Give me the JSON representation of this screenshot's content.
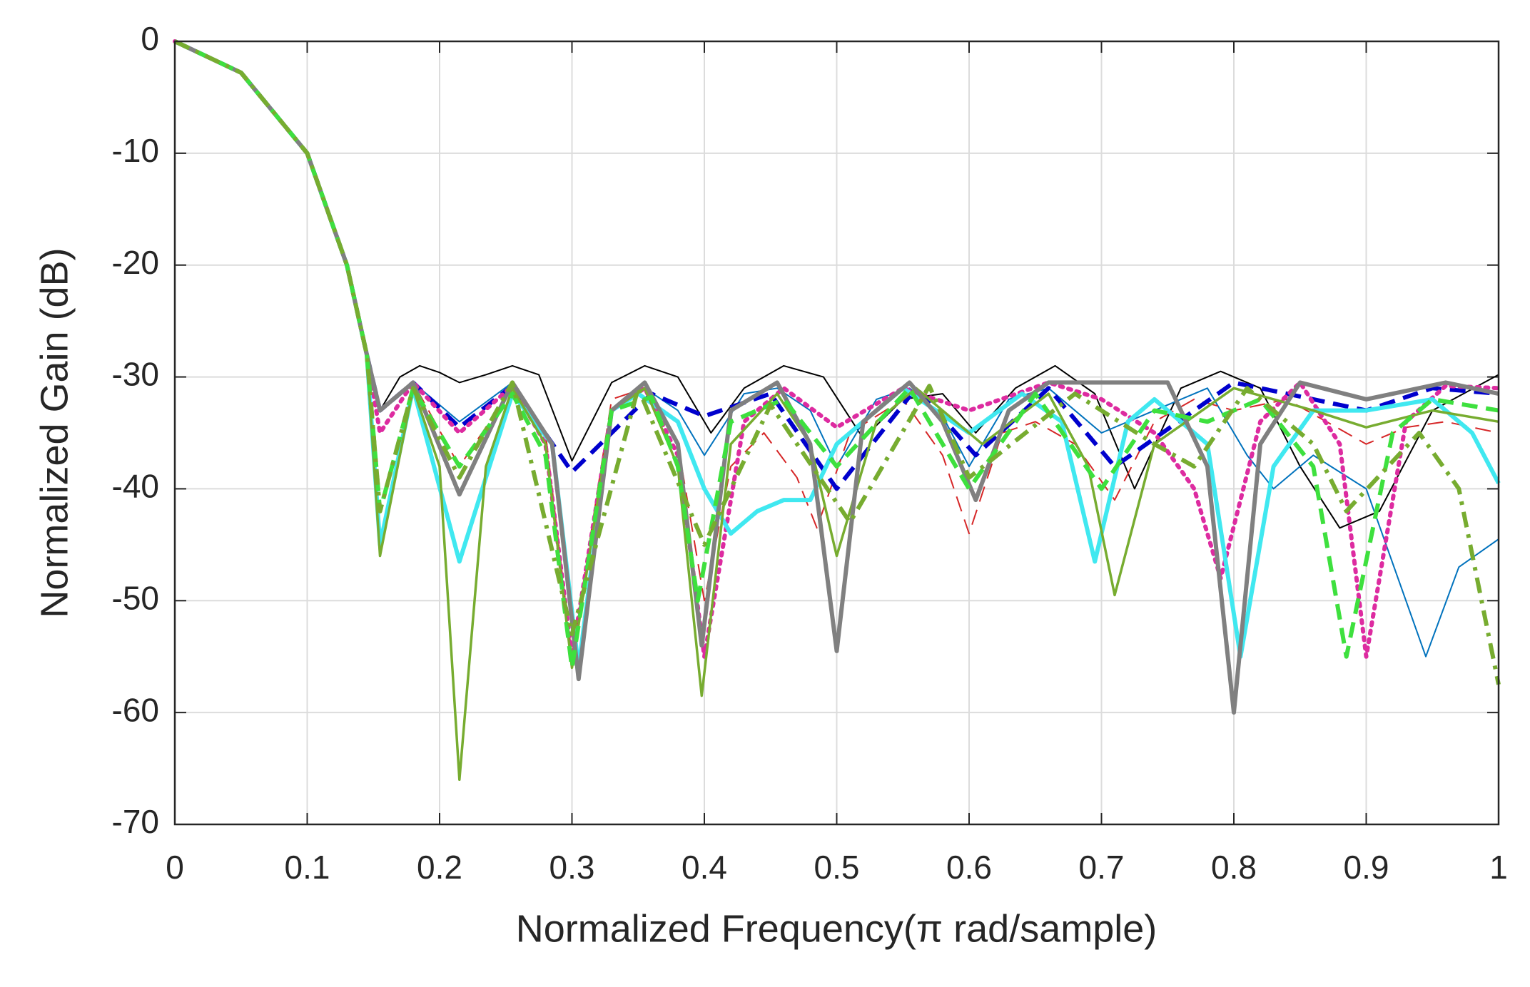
{
  "chart_data": {
    "type": "line",
    "xlabel": "Normalized Frequency(π rad/sample)",
    "ylabel": "Normalized Gain (dB)",
    "xlim": [
      0,
      1
    ],
    "xticks": [
      0,
      0.1,
      0.2,
      0.3,
      0.4,
      0.5,
      0.6,
      0.7,
      0.8,
      0.9,
      1
    ],
    "ylim": [
      -70,
      0
    ],
    "yticks": [
      0,
      -10,
      -20,
      -30,
      -40,
      -50,
      -60,
      -70
    ],
    "grid": true,
    "series": [
      {
        "color": "#000000",
        "style": "solid",
        "weight": "thin",
        "x": [
          0,
          0.05,
          0.1,
          0.13,
          0.145,
          0.155,
          0.17,
          0.185,
          0.2,
          0.215,
          0.235,
          0.255,
          0.275,
          0.3,
          0.33,
          0.355,
          0.38,
          0.405,
          0.43,
          0.46,
          0.49,
          0.52,
          0.55,
          0.58,
          0.605,
          0.635,
          0.665,
          0.695,
          0.725,
          0.76,
          0.79,
          0.82,
          0.85,
          0.88,
          0.91,
          0.95,
          1
        ],
        "values": [
          0,
          -2.8,
          -10,
          -20,
          -28,
          -33,
          -30,
          -29,
          -29.6,
          -30.5,
          -29.8,
          -29,
          -29.8,
          -37.5,
          -30.5,
          -29,
          -30,
          -35,
          -31,
          -29,
          -30,
          -35.5,
          -32,
          -31.5,
          -35,
          -31,
          -29,
          -31.5,
          -40,
          -31,
          -29.5,
          -31,
          -38,
          -43.5,
          -42,
          -33,
          -29.8
        ]
      },
      {
        "color": "#0072bd",
        "style": "solid",
        "weight": "thin",
        "x": [
          0,
          0.05,
          0.1,
          0.13,
          0.145,
          0.155,
          0.18,
          0.215,
          0.255,
          0.285,
          0.305,
          0.33,
          0.355,
          0.38,
          0.4,
          0.43,
          0.455,
          0.48,
          0.5,
          0.53,
          0.555,
          0.58,
          0.6,
          0.63,
          0.66,
          0.7,
          0.74,
          0.78,
          0.81,
          0.83,
          0.86,
          0.9,
          0.93,
          0.945,
          0.97,
          1
        ],
        "values": [
          0,
          -2.8,
          -10,
          -20,
          -28,
          -46,
          -30.5,
          -34,
          -30.5,
          -36,
          -57,
          -33,
          -31,
          -33,
          -37,
          -31.5,
          -31,
          -33,
          -38,
          -32,
          -31,
          -33.5,
          -38,
          -32,
          -31,
          -35,
          -33,
          -31,
          -37,
          -40,
          -37,
          -40,
          -50,
          -55,
          -47,
          -44.5
        ]
      },
      {
        "color": "#d62728",
        "style": "dashed",
        "weight": "thin",
        "x": [
          0,
          0.05,
          0.1,
          0.13,
          0.145,
          0.155,
          0.18,
          0.215,
          0.255,
          0.28,
          0.3,
          0.33,
          0.355,
          0.38,
          0.4,
          0.42,
          0.445,
          0.47,
          0.485,
          0.51,
          0.55,
          0.58,
          0.6,
          0.625,
          0.65,
          0.68,
          0.71,
          0.74,
          0.77,
          0.8,
          0.84,
          0.87,
          0.9,
          0.93,
          0.96,
          1
        ],
        "values": [
          0,
          -2.8,
          -10,
          -20,
          -28,
          -45,
          -30.5,
          -38,
          -31,
          -35,
          -55,
          -32,
          -31,
          -36,
          -50,
          -38,
          -35,
          -39,
          -43.5,
          -35,
          -32,
          -37,
          -44,
          -35,
          -34,
          -36,
          -41,
          -34,
          -32,
          -33,
          -32,
          -34,
          -36,
          -34.5,
          -34,
          -35
        ]
      },
      {
        "color": "#0000cd",
        "style": "dashed",
        "weight": "thick",
        "x": [
          0,
          0.05,
          0.1,
          0.13,
          0.145,
          0.155,
          0.18,
          0.215,
          0.255,
          0.3,
          0.36,
          0.4,
          0.45,
          0.5,
          0.56,
          0.605,
          0.66,
          0.71,
          0.8,
          0.9,
          0.95,
          1
        ],
        "values": [
          0,
          -2.8,
          -10,
          -20,
          -28,
          -33,
          -30.5,
          -34.5,
          -30.8,
          -38.5,
          -31.5,
          -33.5,
          -31.5,
          -40,
          -31,
          -37,
          -31,
          -38,
          -30.5,
          -33,
          -31,
          -31.5
        ]
      },
      {
        "color": "#dd2ba0",
        "style": "dotted",
        "weight": "thick",
        "x": [
          0,
          0.05,
          0.1,
          0.13,
          0.145,
          0.155,
          0.18,
          0.215,
          0.255,
          0.28,
          0.3,
          0.33,
          0.355,
          0.38,
          0.4,
          0.43,
          0.46,
          0.5,
          0.55,
          0.6,
          0.66,
          0.7,
          0.74,
          0.77,
          0.79,
          0.82,
          0.85,
          0.88,
          0.9,
          0.93,
          0.96,
          1
        ],
        "values": [
          0,
          -2.8,
          -10,
          -20,
          -28,
          -35,
          -30.5,
          -35,
          -30.8,
          -36,
          -55,
          -33,
          -31,
          -37,
          -55,
          -34,
          -31,
          -34.5,
          -31,
          -33,
          -30.5,
          -32,
          -35,
          -40,
          -48,
          -34,
          -30.5,
          -36,
          -55,
          -34,
          -30.8,
          -31
        ]
      },
      {
        "color": "#40e8f0",
        "style": "solid",
        "weight": "thick",
        "x": [
          0,
          0.05,
          0.1,
          0.13,
          0.145,
          0.155,
          0.18,
          0.215,
          0.255,
          0.285,
          0.305,
          0.33,
          0.35,
          0.38,
          0.4,
          0.42,
          0.44,
          0.46,
          0.48,
          0.5,
          0.55,
          0.6,
          0.64,
          0.67,
          0.695,
          0.72,
          0.74,
          0.78,
          0.805,
          0.83,
          0.86,
          0.9,
          0.95,
          0.98,
          1
        ],
        "values": [
          0,
          -2.8,
          -10,
          -20,
          -28,
          -45,
          -31,
          -46.5,
          -31.5,
          -36,
          -56,
          -33,
          -31.5,
          -34,
          -40,
          -44,
          -42,
          -41,
          -41,
          -36,
          -31,
          -35,
          -31.5,
          -34,
          -46.5,
          -34,
          -32,
          -36,
          -55,
          -38,
          -33,
          -33,
          -32,
          -35,
          -39.5
        ]
      },
      {
        "color": "#77ac30",
        "style": "solid",
        "weight": "medium",
        "x": [
          0,
          0.05,
          0.1,
          0.13,
          0.145,
          0.155,
          0.18,
          0.2,
          0.215,
          0.235,
          0.255,
          0.28,
          0.3,
          0.33,
          0.355,
          0.38,
          0.398,
          0.42,
          0.455,
          0.48,
          0.5,
          0.53,
          0.56,
          0.61,
          0.66,
          0.69,
          0.71,
          0.74,
          0.8,
          0.86,
          0.9,
          0.95,
          1
        ],
        "values": [
          0,
          -2.8,
          -10,
          -20,
          -28,
          -46,
          -31,
          -38,
          -66,
          -38,
          -31,
          -36,
          -56,
          -33,
          -31,
          -38,
          -58.5,
          -36,
          -31.5,
          -36,
          -46,
          -34,
          -31,
          -36,
          -31.5,
          -38,
          -49.5,
          -36,
          -31,
          -33,
          -34.5,
          -33,
          -34
        ]
      },
      {
        "color": "#808080",
        "style": "solid",
        "weight": "thick",
        "x": [
          0,
          0.05,
          0.1,
          0.13,
          0.145,
          0.155,
          0.18,
          0.215,
          0.255,
          0.285,
          0.305,
          0.33,
          0.355,
          0.38,
          0.398,
          0.42,
          0.455,
          0.48,
          0.5,
          0.52,
          0.555,
          0.58,
          0.605,
          0.63,
          0.66,
          0.75,
          0.78,
          0.8,
          0.82,
          0.85,
          0.9,
          0.96,
          1
        ],
        "values": [
          0,
          -2.8,
          -10,
          -20,
          -28,
          -33,
          -30.5,
          -40.5,
          -30.5,
          -36,
          -57,
          -33,
          -30.5,
          -36,
          -54,
          -33,
          -30.5,
          -36,
          -54.5,
          -34,
          -30.5,
          -34,
          -41,
          -33,
          -30.5,
          -30.5,
          -38,
          -60,
          -36,
          -30.5,
          -32,
          -30.5,
          -31.5
        ]
      },
      {
        "color": "#3ee03e",
        "style": "dashed",
        "weight": "thick",
        "x": [
          0,
          0.05,
          0.1,
          0.13,
          0.145,
          0.155,
          0.18,
          0.215,
          0.255,
          0.28,
          0.3,
          0.33,
          0.36,
          0.38,
          0.395,
          0.42,
          0.46,
          0.5,
          0.555,
          0.6,
          0.65,
          0.7,
          0.74,
          0.78,
          0.82,
          0.86,
          0.885,
          0.92,
          0.95,
          1
        ],
        "values": [
          0,
          -2.8,
          -10,
          -20,
          -28,
          -42,
          -31,
          -38,
          -31.5,
          -37,
          -56,
          -33,
          -31.8,
          -38,
          -50,
          -34,
          -32,
          -38,
          -31,
          -40,
          -31.5,
          -40,
          -33,
          -34,
          -32,
          -38,
          -55,
          -35,
          -32,
          -33
        ]
      },
      {
        "color": "#77ac30",
        "style": "dash-dot",
        "weight": "thick",
        "x": [
          0,
          0.05,
          0.1,
          0.13,
          0.145,
          0.155,
          0.18,
          0.215,
          0.255,
          0.3,
          0.35,
          0.4,
          0.45,
          0.51,
          0.57,
          0.6,
          0.68,
          0.74,
          0.77,
          0.81,
          0.86,
          0.885,
          0.94,
          0.97,
          1
        ],
        "values": [
          0,
          -2.8,
          -10,
          -20,
          -28,
          -42,
          -31,
          -39,
          -30.5,
          -53,
          -31,
          -45,
          -32.5,
          -43,
          -30.8,
          -39,
          -31.5,
          -36,
          -38,
          -31,
          -36,
          -42,
          -35,
          -40,
          -57.5
        ]
      }
    ]
  }
}
